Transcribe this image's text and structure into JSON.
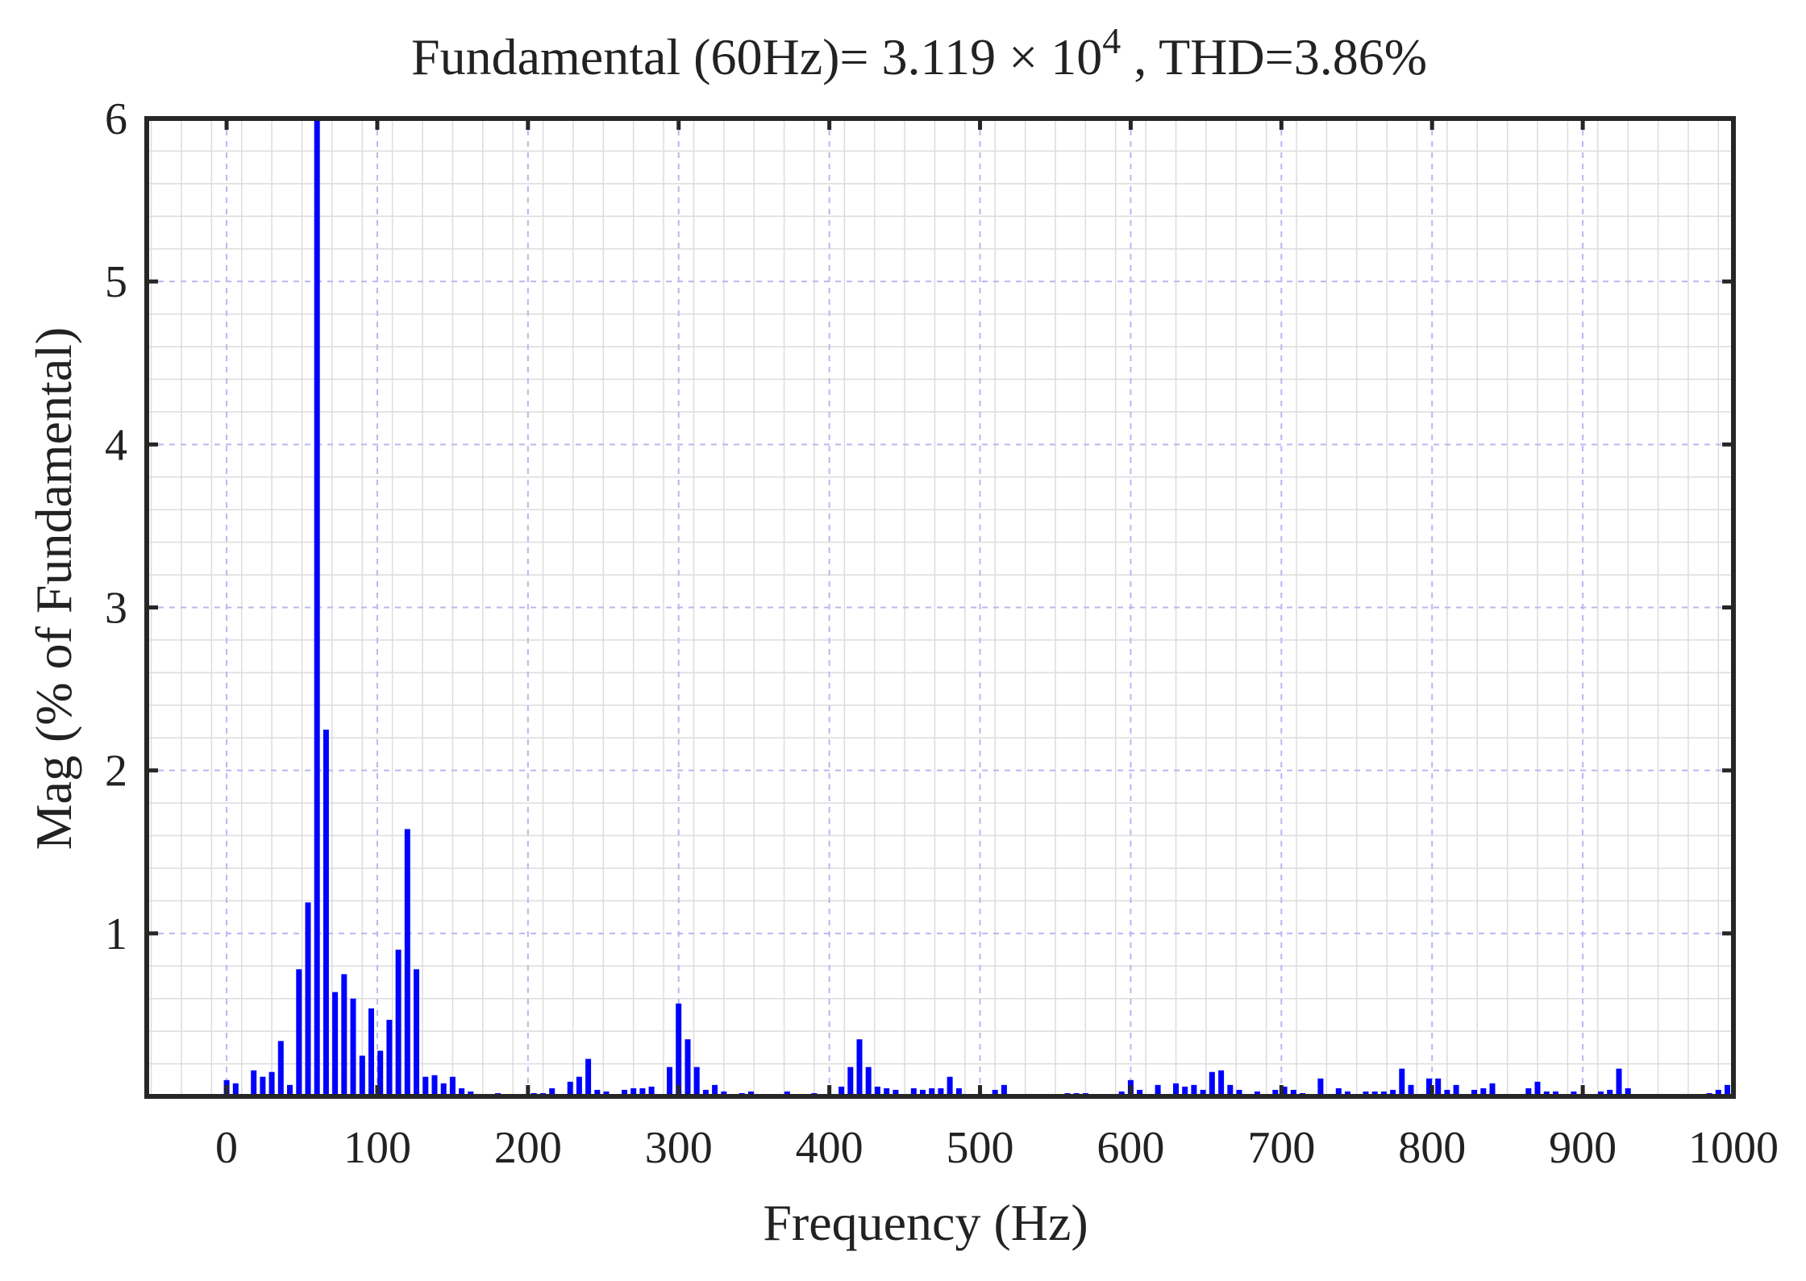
{
  "chart_data": {
    "type": "bar",
    "title_main": "Fundamental (60Hz)= 3.119 × 10",
    "title_exp": "4",
    "title_tail": " , THD=3.86%",
    "xlabel": "Frequency (Hz)",
    "ylabel": "Mag (% of Fundamental)",
    "xlim": [
      -53,
      1000
    ],
    "ylim": [
      0,
      6
    ],
    "x_ticks": [
      0,
      100,
      200,
      300,
      400,
      500,
      600,
      700,
      800,
      900,
      1000
    ],
    "y_ticks": [
      1,
      2,
      3,
      4,
      5,
      6
    ],
    "grid": true,
    "minor_grid": true,
    "bar_color": "#0000ff",
    "x": [
      0,
      6,
      18,
      24,
      30,
      36,
      42,
      48,
      54,
      60,
      66,
      72,
      78,
      84,
      90,
      96,
      102,
      108,
      114,
      120,
      126,
      132,
      138,
      144,
      150,
      156,
      162,
      180,
      204,
      210,
      216,
      228,
      234,
      240,
      246,
      252,
      264,
      270,
      276,
      282,
      294,
      300,
      306,
      312,
      318,
      324,
      330,
      342,
      348,
      372,
      390,
      408,
      414,
      420,
      426,
      432,
      438,
      444,
      456,
      462,
      468,
      474,
      480,
      486,
      510,
      516,
      558,
      564,
      570,
      594,
      600,
      606,
      618,
      630,
      636,
      642,
      648,
      654,
      660,
      666,
      672,
      684,
      696,
      702,
      708,
      714,
      726,
      738,
      744,
      756,
      762,
      768,
      774,
      780,
      786,
      798,
      804,
      810,
      816,
      828,
      834,
      840,
      864,
      870,
      876,
      882,
      894,
      912,
      918,
      924,
      930,
      984,
      990,
      996
    ],
    "values": [
      0.1,
      0.08,
      0.16,
      0.12,
      0.15,
      0.34,
      0.07,
      0.78,
      1.19,
      6.0,
      2.25,
      0.64,
      0.75,
      0.6,
      0.25,
      0.54,
      0.28,
      0.47,
      0.9,
      1.64,
      0.78,
      0.12,
      0.13,
      0.08,
      0.12,
      0.05,
      0.03,
      0.02,
      0.02,
      0.02,
      0.05,
      0.09,
      0.12,
      0.23,
      0.04,
      0.03,
      0.04,
      0.05,
      0.05,
      0.06,
      0.18,
      0.57,
      0.35,
      0.18,
      0.04,
      0.07,
      0.03,
      0.02,
      0.03,
      0.03,
      0.02,
      0.06,
      0.18,
      0.35,
      0.18,
      0.06,
      0.05,
      0.04,
      0.05,
      0.04,
      0.05,
      0.05,
      0.12,
      0.05,
      0.04,
      0.07,
      0.02,
      0.02,
      0.02,
      0.03,
      0.1,
      0.04,
      0.07,
      0.08,
      0.06,
      0.07,
      0.04,
      0.15,
      0.16,
      0.07,
      0.04,
      0.03,
      0.04,
      0.06,
      0.04,
      0.02,
      0.11,
      0.05,
      0.03,
      0.03,
      0.03,
      0.03,
      0.04,
      0.17,
      0.07,
      0.11,
      0.11,
      0.04,
      0.07,
      0.04,
      0.05,
      0.08,
      0.05,
      0.09,
      0.03,
      0.03,
      0.03,
      0.03,
      0.04,
      0.17,
      0.05,
      0.02,
      0.04,
      0.07
    ]
  }
}
